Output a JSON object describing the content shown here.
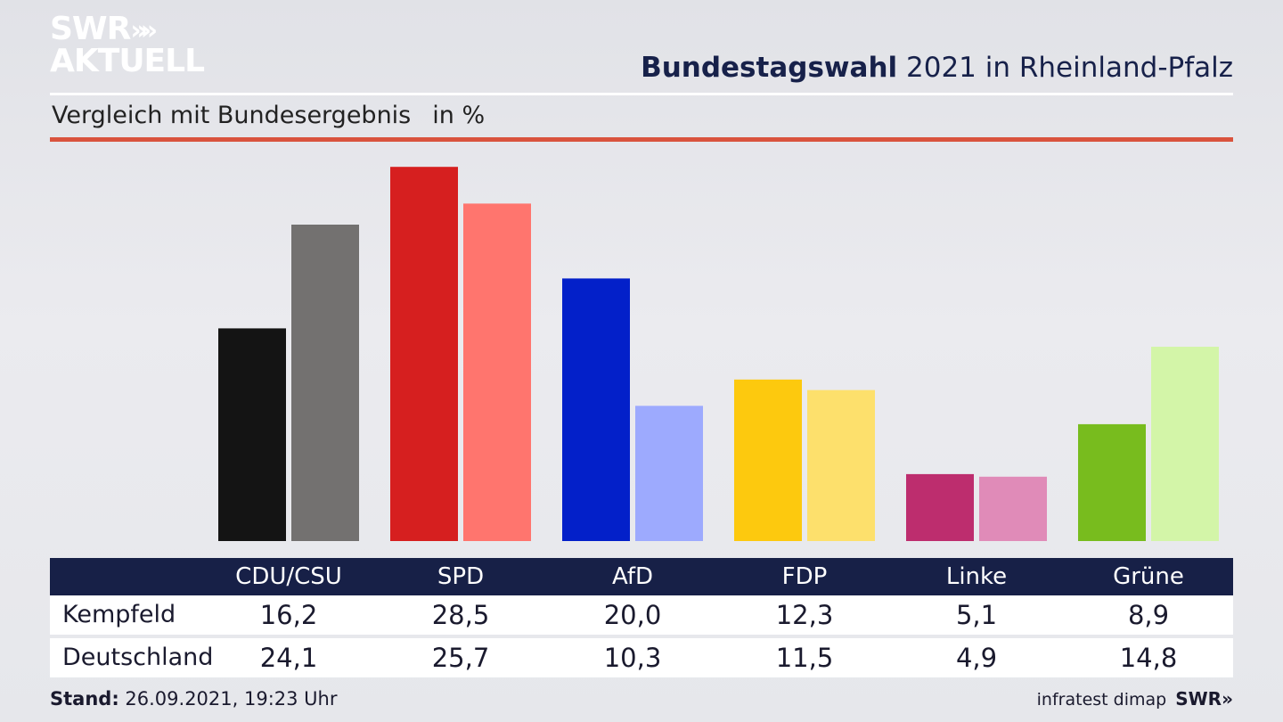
{
  "brand": {
    "logo_top": "SWR",
    "logo_chevrons": "»",
    "logo_bottom": "AKTUELL"
  },
  "header": {
    "title_bold": "Bundestagswahl",
    "title_rest": " 2021 in Rheinland-Pfalz",
    "subtitle": "Vergleich mit Bundesergebnis",
    "unit": "in %"
  },
  "chart_data": {
    "type": "bar",
    "categories": [
      "CDU/CSU",
      "SPD",
      "AfD",
      "FDP",
      "Linke",
      "Grüne"
    ],
    "series": [
      {
        "name": "Kempfeld",
        "values": [
          16.2,
          28.5,
          20.0,
          12.3,
          5.1,
          8.9
        ]
      },
      {
        "name": "Deutschland",
        "values": [
          24.1,
          25.7,
          10.3,
          11.5,
          4.9,
          14.8
        ]
      }
    ],
    "colors_primary": [
      "#141414",
      "#d61f1f",
      "#0320c9",
      "#fdc90e",
      "#bd2d6e",
      "#78bc1e"
    ],
    "colors_secondary": [
      "#737170",
      "#ff756e",
      "#9daafe",
      "#fde06c",
      "#e08bb8",
      "#d3f5a8"
    ],
    "ylim": [
      0,
      29
    ],
    "grid": false,
    "legend": "table-below"
  },
  "table": {
    "headers": [
      "CDU/CSU",
      "SPD",
      "AfD",
      "FDP",
      "Linke",
      "Grüne"
    ],
    "rows": [
      {
        "label": "Kempfeld",
        "cells": [
          "16,2",
          "28,5",
          "20,0",
          "12,3",
          "5,1",
          "8,9"
        ]
      },
      {
        "label": "Deutschland",
        "cells": [
          "24,1",
          "25,7",
          "10,3",
          "11,5",
          "4,9",
          "14,8"
        ]
      }
    ]
  },
  "footer": {
    "stand_label": "Stand:",
    "stand_value": " 26.09.2021, 19:23 Uhr",
    "source": "infratest dimap",
    "source_brand": "SWR»"
  },
  "theme": {
    "navy": "#172047",
    "accent_red": "#d9533d"
  }
}
